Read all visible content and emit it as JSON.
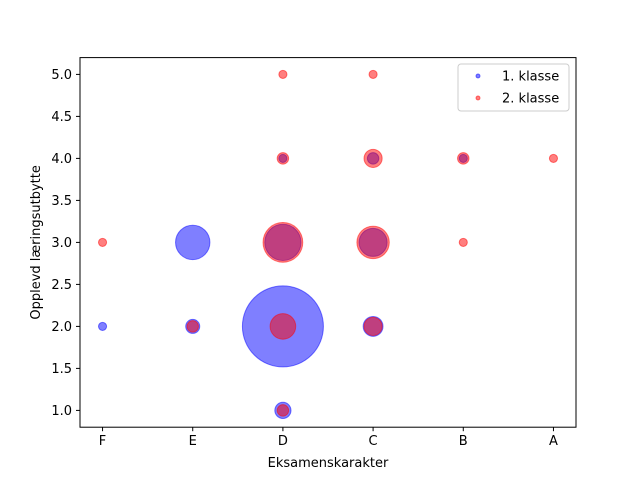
{
  "chart_data": {
    "type": "scatter",
    "xlabel": "Eksamenskarakter",
    "ylabel": "Opplevd læringsutbytte",
    "x_categories": [
      "F",
      "E",
      "D",
      "C",
      "B",
      "A"
    ],
    "ylim": [
      0.8,
      5.2
    ],
    "yticks": [
      "1.0",
      "1.5",
      "2.0",
      "2.5",
      "3.0",
      "3.5",
      "4.0",
      "4.5",
      "5.0"
    ],
    "legend_position": "upper right",
    "grid": false,
    "series": [
      {
        "name": "1. klasse",
        "color": "#0000ff",
        "points": [
          {
            "x": "F",
            "y": 2,
            "size": 1
          },
          {
            "x": "E",
            "y": 2,
            "size": 3
          },
          {
            "x": "E",
            "y": 3,
            "size": 18
          },
          {
            "x": "D",
            "y": 1,
            "size": 4
          },
          {
            "x": "D",
            "y": 2,
            "size": 100
          },
          {
            "x": "D",
            "y": 3,
            "size": 20
          },
          {
            "x": "D",
            "y": 4,
            "size": 1
          },
          {
            "x": "C",
            "y": 2,
            "size": 6
          },
          {
            "x": "C",
            "y": 3,
            "size": 12
          },
          {
            "x": "C",
            "y": 4,
            "size": 2
          },
          {
            "x": "B",
            "y": 4,
            "size": 1
          }
        ]
      },
      {
        "name": "2. klasse",
        "color": "#ff0000",
        "points": [
          {
            "x": "F",
            "y": 3,
            "size": 1
          },
          {
            "x": "E",
            "y": 2,
            "size": 2
          },
          {
            "x": "D",
            "y": 1,
            "size": 2
          },
          {
            "x": "D",
            "y": 2,
            "size": 10
          },
          {
            "x": "D",
            "y": 3,
            "size": 24
          },
          {
            "x": "D",
            "y": 4,
            "size": 2
          },
          {
            "x": "D",
            "y": 5,
            "size": 1
          },
          {
            "x": "C",
            "y": 2,
            "size": 5
          },
          {
            "x": "C",
            "y": 3,
            "size": 16
          },
          {
            "x": "C",
            "y": 4,
            "size": 5
          },
          {
            "x": "C",
            "y": 5,
            "size": 1
          },
          {
            "x": "B",
            "y": 3,
            "size": 1
          },
          {
            "x": "B",
            "y": 4,
            "size": 2
          },
          {
            "x": "A",
            "y": 4,
            "size": 1
          }
        ]
      }
    ]
  }
}
